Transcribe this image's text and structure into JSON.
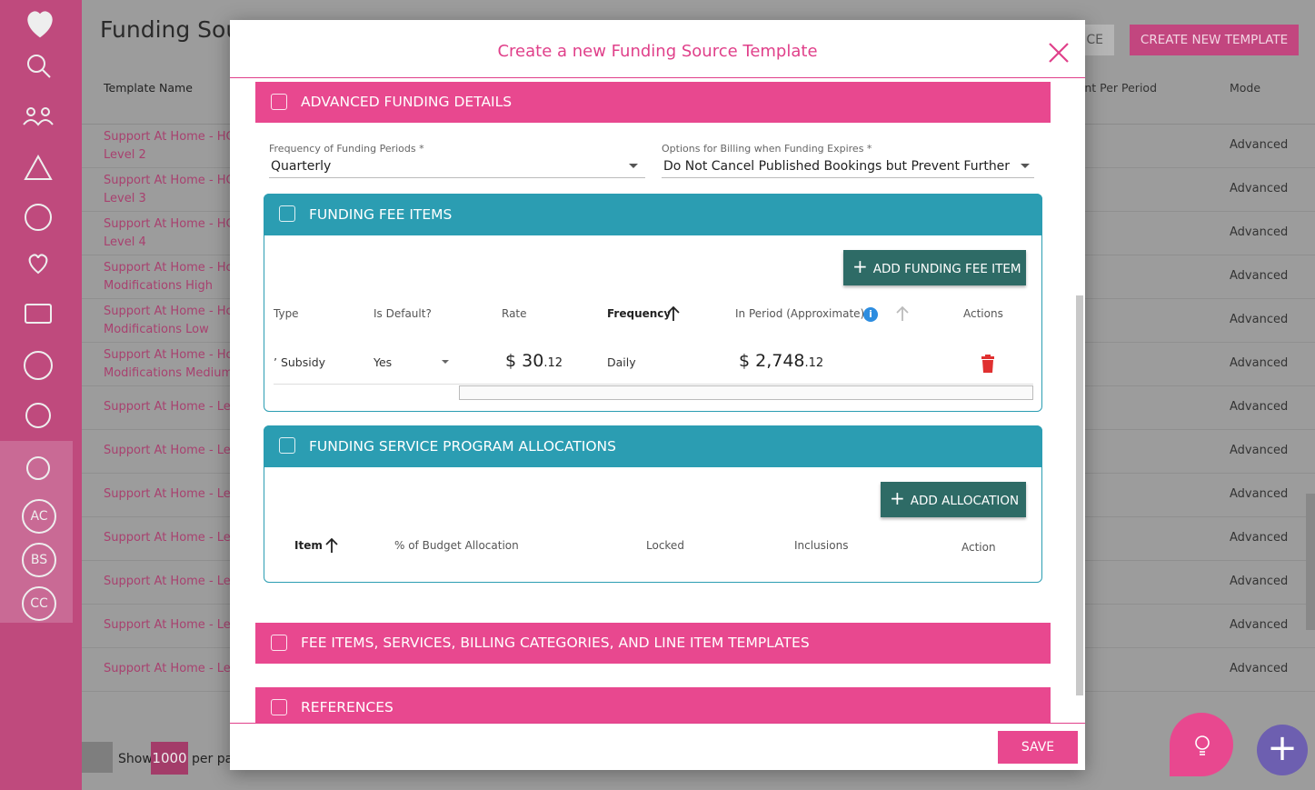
{
  "background": {
    "title": "Funding Sour",
    "columns": {
      "name": "Template Name",
      "amount": "Amount Per Period",
      "mode": "Mode"
    },
    "buttons": {
      "partial": "CE",
      "create": "CREATE NEW TEMPLATE"
    },
    "rows": [
      {
        "name": [
          "Support At Home - HCP",
          "Level 2"
        ],
        "mode": "Advanced"
      },
      {
        "name": [
          "Support At Home - HCP",
          "Level 3"
        ],
        "mode": "Advanced"
      },
      {
        "name": [
          "Support At Home - HCP",
          "Level 4"
        ],
        "mode": "Advanced"
      },
      {
        "name": [
          "Support At Home - Home",
          "Modifications High"
        ],
        "mode": "Advanced"
      },
      {
        "name": [
          "Support At Home - Home",
          "Modifications Low"
        ],
        "mode": "Advanced"
      },
      {
        "name": [
          "Support At Home - Home",
          "Modifications Medium"
        ],
        "mode": "Advanced"
      },
      {
        "name": [
          "Support At Home - Level"
        ],
        "mode": "Advanced"
      },
      {
        "name": [
          "Support At Home - Level"
        ],
        "mode": "Advanced"
      },
      {
        "name": [
          "Support At Home - Level"
        ],
        "mode": "Advanced"
      },
      {
        "name": [
          "Support At Home - Level"
        ],
        "mode": "Advanced"
      },
      {
        "name": [
          "Support At Home - Level"
        ],
        "mode": "Advanced"
      },
      {
        "name": [
          "Support At Home - Level"
        ],
        "mode": "Advanced"
      },
      {
        "name": [
          "Support At Home - Level"
        ],
        "mode": "Advanced"
      }
    ],
    "pagination": {
      "show": "Show",
      "count": "1000",
      "per_page": "per page"
    },
    "sidebar": {
      "initials": [
        "AC",
        "BS",
        "CC"
      ]
    }
  },
  "modal": {
    "title": "Create a new Funding Source Template",
    "save": "SAVE",
    "advanced": {
      "title": "ADVANCED FUNDING DETAILS",
      "frequency": {
        "label": "Frequency of Funding Periods *",
        "value": "Quarterly"
      },
      "billing": {
        "label": "Options for Billing when Funding Expires *",
        "value": "Do Not Cancel Published Bookings but Prevent Further B..."
      }
    },
    "fee_items": {
      "title": "FUNDING FEE ITEMS",
      "button": "ADD FUNDING FEE ITEM",
      "headers": [
        "Type",
        "Is Default?",
        "Rate",
        "Frequency",
        "In Period (Approximate)",
        "Actions"
      ],
      "row": {
        "type": "Subsidy",
        "default": "Yes",
        "rate": {
          "whole": "$ 30",
          "cents": ".12"
        },
        "frequency": "Daily",
        "period": {
          "whole": "$ 2,748",
          "cents": ".12"
        }
      }
    },
    "allocations": {
      "title": "FUNDING SERVICE PROGRAM ALLOCATIONS",
      "button": "ADD ALLOCATION",
      "headers": [
        "Item",
        "% of Budget Allocation",
        "Locked",
        "Inclusions",
        "Action"
      ]
    },
    "fee_services": {
      "title": "FEE ITEMS, SERVICES, BILLING CATEGORIES, AND LINE ITEM TEMPLATES"
    },
    "references": {
      "title": "REFERENCES"
    }
  }
}
